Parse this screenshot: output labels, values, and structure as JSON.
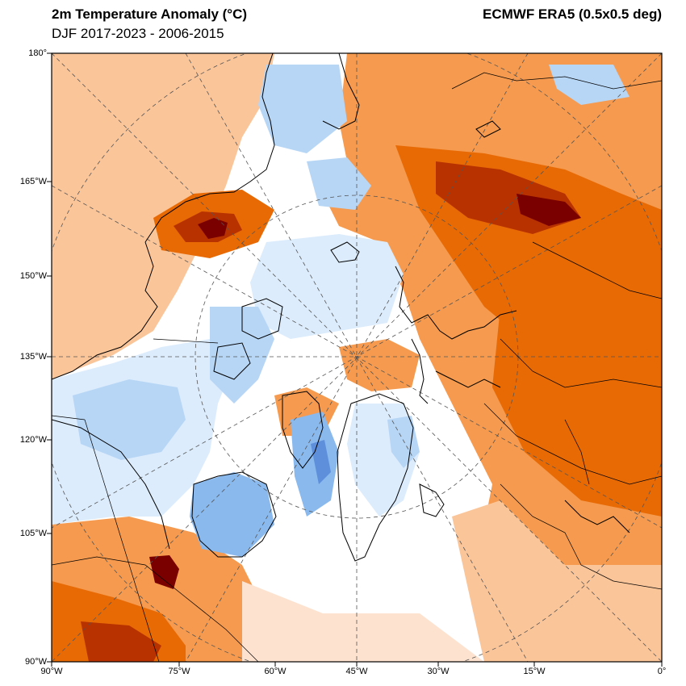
{
  "header": {
    "title": "2m Temperature Anomaly (°C)",
    "subtitle": "DJF 2017-2023 - 2006-2015",
    "source": "ECMWF ERA5 (0.5x0.5 deg)"
  },
  "axes": {
    "left_ticks": [
      "180°",
      "165°W",
      "150°W",
      "135°W",
      "120°W",
      "105°W",
      "90°W"
    ],
    "bottom_ticks": [
      "90°W",
      "75°W",
      "60°W",
      "45°W",
      "30°W",
      "15°W",
      "0°"
    ]
  },
  "colors": {
    "strong_warm": "#7a0000",
    "very_warm": "#b83200",
    "warm": "#e86a05",
    "mid_warm": "#f59a4e",
    "light_warm": "#fbc59a",
    "faint_warm": "#fde3cf",
    "neutral": "#ffffff",
    "faint_cool": "#dcecfc",
    "light_cool": "#b7d6f6",
    "cool": "#8ab9ee",
    "dark_cool": "#5e8fdb"
  },
  "map": {
    "projection": "north-polar-stereographic",
    "variable": "2m temperature anomaly",
    "graticule": "dashed",
    "coastlines": true,
    "political_borders": true
  }
}
